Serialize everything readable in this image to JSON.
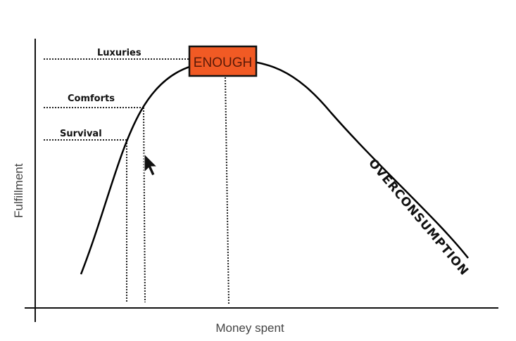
{
  "diagram": {
    "y_axis_label": "Fulfillment",
    "x_axis_label": "Money spent",
    "levels": [
      "Luxuries",
      "Comforts",
      "Survival"
    ],
    "peak_label": "ENOUGH",
    "decline_label": "OVERCONSUMPTION",
    "colors": {
      "peak_box": "#f15a24",
      "curve": "#000000"
    }
  }
}
